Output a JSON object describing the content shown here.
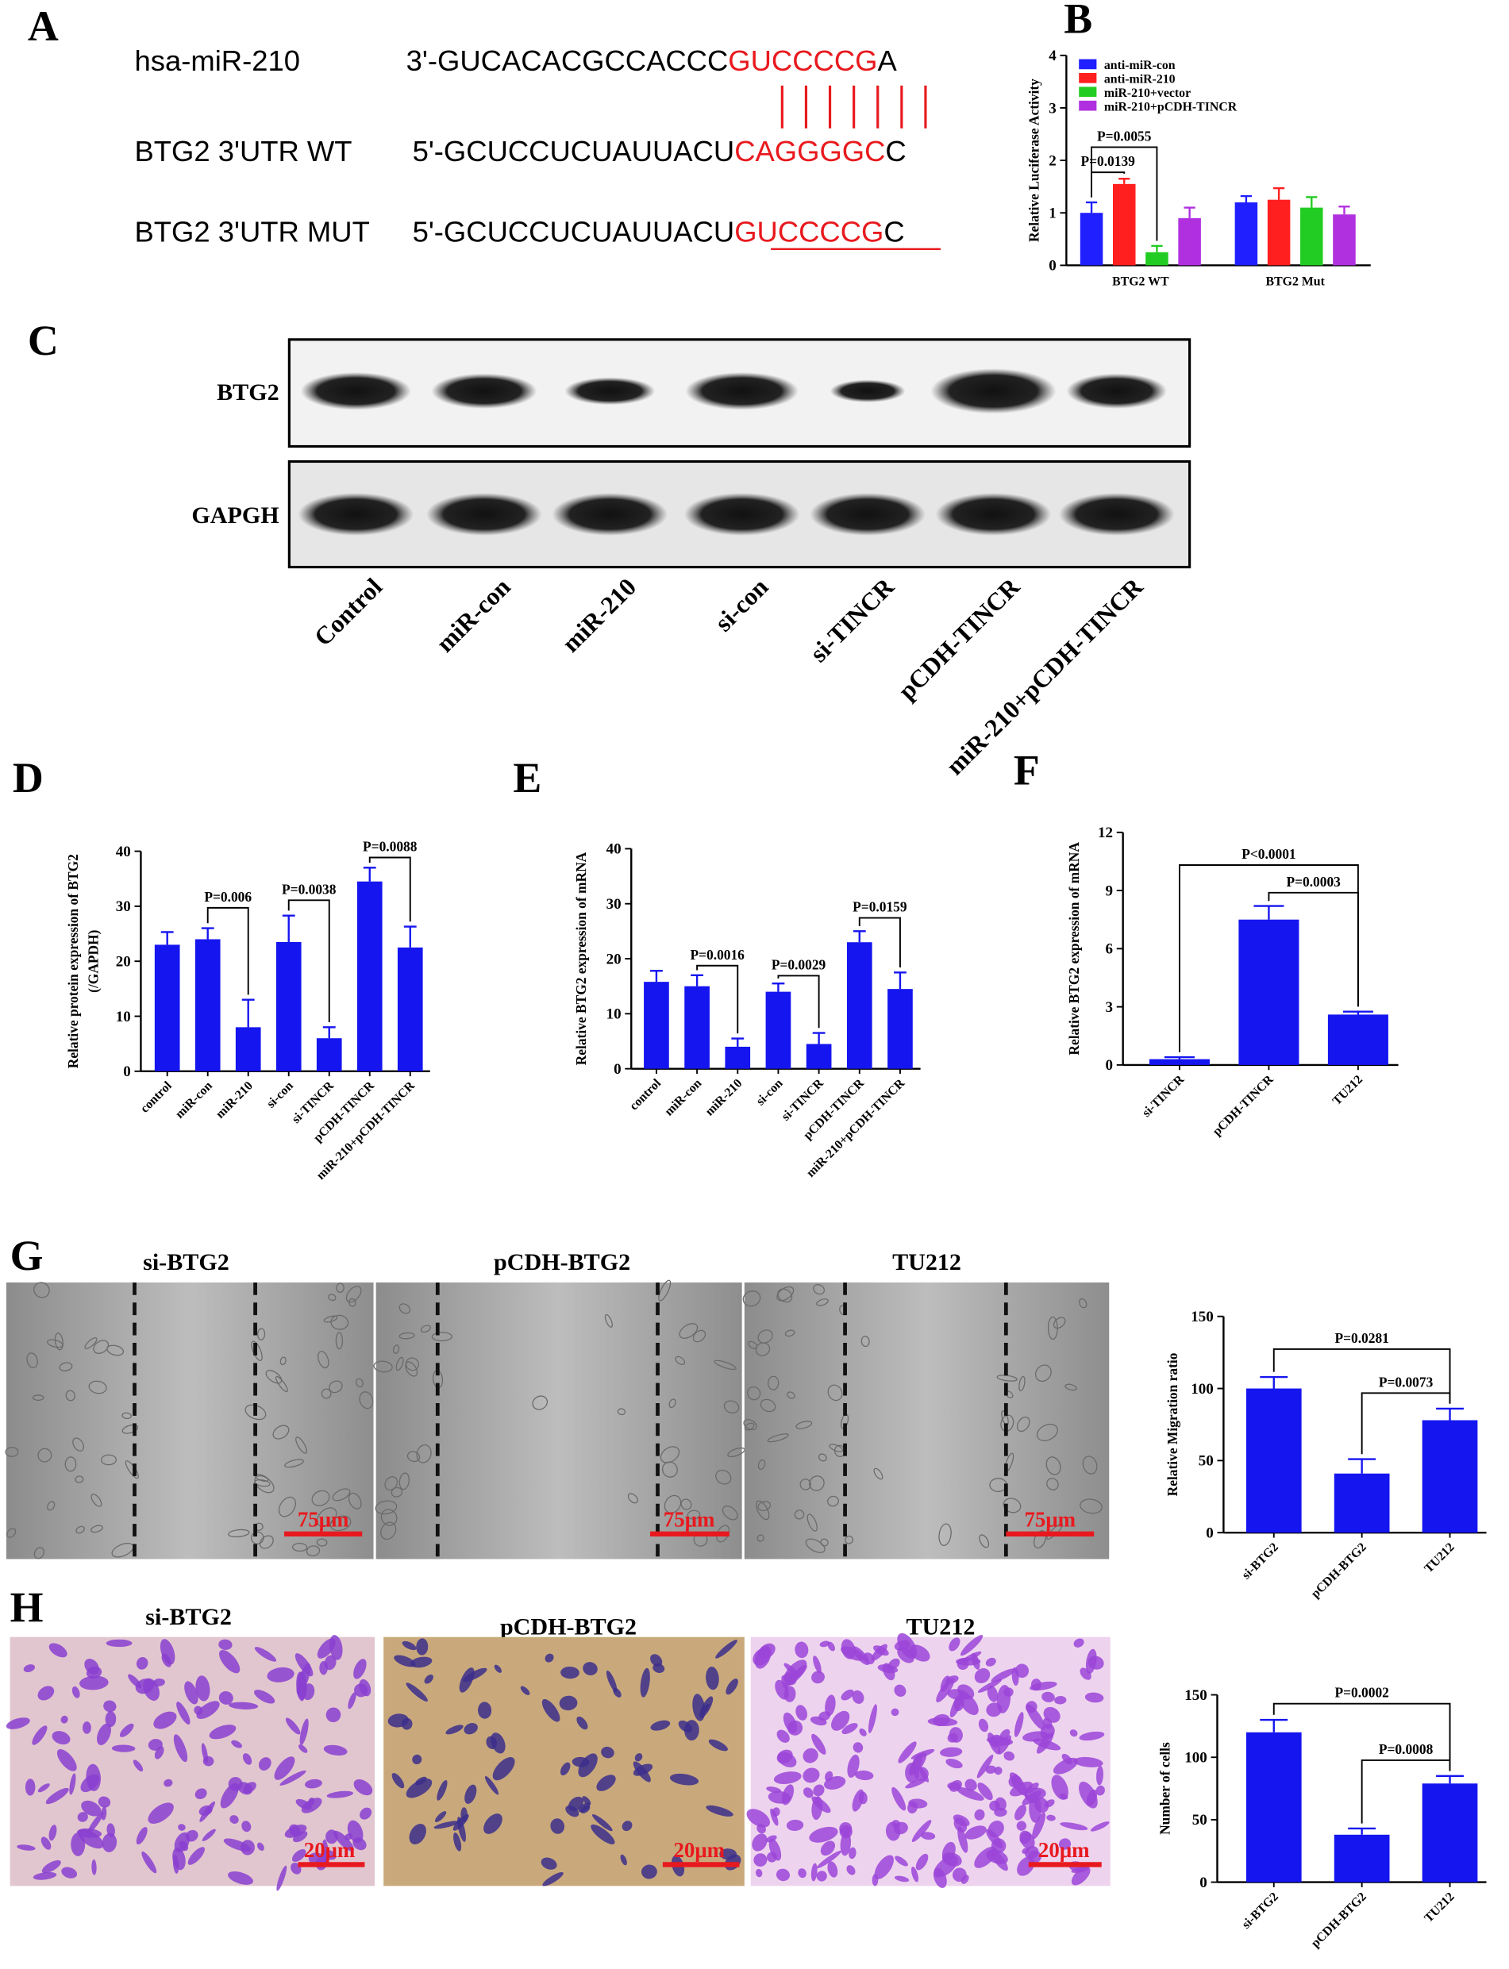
{
  "panels": [
    "A",
    "B",
    "C",
    "D",
    "E",
    "F",
    "G",
    "H"
  ],
  "sequence_alignment": {
    "rows": [
      {
        "label": "hsa-miR-210",
        "prefix": "3'-GUCACACGCCACCC",
        "site": "GUCCCCG",
        "suffix": "A"
      },
      {
        "label": "BTG2 3'UTR WT",
        "prefix": "5'-GCUCCUCUAUUACU",
        "site": "CAGGGGC",
        "suffix": "C"
      },
      {
        "label": "BTG2 3'UTR MUT",
        "prefix": "5'-GCUCCUCUAUUACU",
        "site": "GUCCCCG",
        "suffix": "C"
      }
    ]
  },
  "blot": {
    "rows": [
      "BTG2",
      "GAPGH"
    ],
    "lanes": [
      "Control",
      "miR-con",
      "miR-210",
      "si-con",
      "si-TINCR",
      "pCDH-TINCR",
      "miR-210+pCDH-TINCR"
    ]
  },
  "micrographs": {
    "migration": {
      "titles": [
        "si-BTG2",
        "pCDH-BTG2",
        "TU212"
      ],
      "scale_label": "75μm"
    },
    "invasion": {
      "titles": [
        "si-BTG2",
        "pCDH-BTG2",
        "TU212"
      ],
      "scale_label": "20μm"
    }
  },
  "chart_data": [
    {
      "type": "bar",
      "ylabel": "Relative Luciferase  Activity",
      "categories": [
        "BTG2 WT",
        "BTG2 Mut"
      ],
      "series": [
        {
          "name": "anti-miR-con",
          "color": "#1f1fff",
          "values": [
            1.0,
            1.2
          ],
          "errors": [
            0.2,
            0.12
          ]
        },
        {
          "name": "anti-miR-210",
          "color": "#ff1f1f",
          "values": [
            1.55,
            1.25
          ],
          "errors": [
            0.1,
            0.22
          ]
        },
        {
          "name": "miR-210+vector",
          "color": "#22cc22",
          "values": [
            0.25,
            1.1
          ],
          "errors": [
            0.12,
            0.2
          ]
        },
        {
          "name": "miR-210+pCDH-TINCR",
          "color": "#b030e0",
          "values": [
            0.9,
            0.97
          ],
          "errors": [
            0.2,
            0.15
          ]
        }
      ],
      "ylim": [
        0,
        4
      ],
      "yticks": [
        0,
        1,
        2,
        3,
        4
      ],
      "legend": "upper left",
      "annotations": [
        {
          "label": "P=0.0139",
          "category": "BTG2 WT",
          "between": [
            "anti-miR-con",
            "anti-miR-210"
          ]
        },
        {
          "label": "P=0.0055",
          "category": "BTG2 WT",
          "between": [
            "anti-miR-con",
            "miR-210+vector"
          ]
        }
      ]
    },
    {
      "type": "bar",
      "ylabel": [
        "Relative protein expression of BTG2",
        "(/GAPDH)"
      ],
      "categories": [
        "control",
        "miR-con",
        "miR-210",
        "si-con",
        "si-TINCR",
        "pCDH-TINCR",
        "miR-210+pCDH-TINCR"
      ],
      "values": [
        23,
        24,
        8,
        23.5,
        6,
        34.5,
        22.5
      ],
      "errors": [
        2.3,
        2,
        5,
        4.8,
        2,
        2.5,
        3.8
      ],
      "color": "#1515f0",
      "ylim": [
        0,
        40
      ],
      "yticks": [
        0,
        10,
        20,
        30,
        40
      ],
      "annotations": [
        {
          "label": "P=0.006",
          "between": [
            "miR-con",
            "miR-210"
          ]
        },
        {
          "label": "P=0.0038",
          "between": [
            "si-con",
            "si-TINCR"
          ]
        },
        {
          "label": "P=0.0088",
          "between": [
            "pCDH-TINCR",
            "miR-210+pCDH-TINCR"
          ]
        }
      ]
    },
    {
      "type": "bar",
      "ylabel": "Relative BTG2 expression of mRNA",
      "categories": [
        "control",
        "miR-con",
        "miR-210",
        "si-con",
        "si-TINCR",
        "pCDH-TINCR",
        "miR-210+pCDH-TINCR"
      ],
      "values": [
        15.8,
        15,
        4,
        14,
        4.5,
        23,
        14.5
      ],
      "errors": [
        2,
        2,
        1.5,
        1.5,
        2,
        2,
        3
      ],
      "color": "#1515f0",
      "ylim": [
        0,
        40
      ],
      "yticks": [
        0,
        10,
        20,
        30,
        40
      ],
      "annotations": [
        {
          "label": "P=0.0016",
          "between": [
            "miR-con",
            "miR-210"
          ]
        },
        {
          "label": "P=0.0029",
          "between": [
            "si-con",
            "si-TINCR"
          ]
        },
        {
          "label": "P=0.0159",
          "between": [
            "pCDH-TINCR",
            "miR-210+pCDH-TINCR"
          ]
        }
      ]
    },
    {
      "type": "bar",
      "ylabel": "Relative BTG2 expression of mRNA",
      "categories": [
        "si-TINCR",
        "pCDH-TINCR",
        "TU212"
      ],
      "values": [
        0.3,
        7.5,
        2.6
      ],
      "errors": [
        0.1,
        0.7,
        0.15
      ],
      "color": "#1515f0",
      "ylim": [
        0,
        12
      ],
      "yticks": [
        0,
        3,
        6,
        9,
        12
      ],
      "annotations": [
        {
          "label": "P<0.0001",
          "between": [
            "si-TINCR",
            "TU212"
          ]
        },
        {
          "label": "P=0.0003",
          "between": [
            "pCDH-TINCR",
            "TU212"
          ]
        }
      ]
    },
    {
      "type": "bar",
      "ylabel": "Relative Migration ratio",
      "categories": [
        "si-BTG2",
        "pCDH-BTG2",
        "TU212"
      ],
      "values": [
        100,
        41,
        78
      ],
      "errors": [
        8,
        10,
        8
      ],
      "color": "#1515f0",
      "ylim": [
        0,
        150
      ],
      "yticks": [
        0,
        50,
        100,
        150
      ],
      "annotations": [
        {
          "label": "P=0.0281",
          "between": [
            "si-BTG2",
            "TU212"
          ]
        },
        {
          "label": "P=0.0073",
          "between": [
            "pCDH-BTG2",
            "TU212"
          ]
        }
      ]
    },
    {
      "type": "bar",
      "ylabel": "Number of cells",
      "categories": [
        "si-BTG2",
        "pCDH-BTG2",
        "TU212"
      ],
      "values": [
        120,
        38,
        79
      ],
      "errors": [
        10,
        5,
        6
      ],
      "color": "#1515f0",
      "ylim": [
        0,
        150
      ],
      "yticks": [
        0,
        50,
        100,
        150
      ],
      "annotations": [
        {
          "label": "P=0.0002",
          "between": [
            "si-BTG2",
            "TU212"
          ]
        },
        {
          "label": "P=0.0008",
          "between": [
            "pCDH-BTG2",
            "TU212"
          ]
        }
      ]
    }
  ]
}
